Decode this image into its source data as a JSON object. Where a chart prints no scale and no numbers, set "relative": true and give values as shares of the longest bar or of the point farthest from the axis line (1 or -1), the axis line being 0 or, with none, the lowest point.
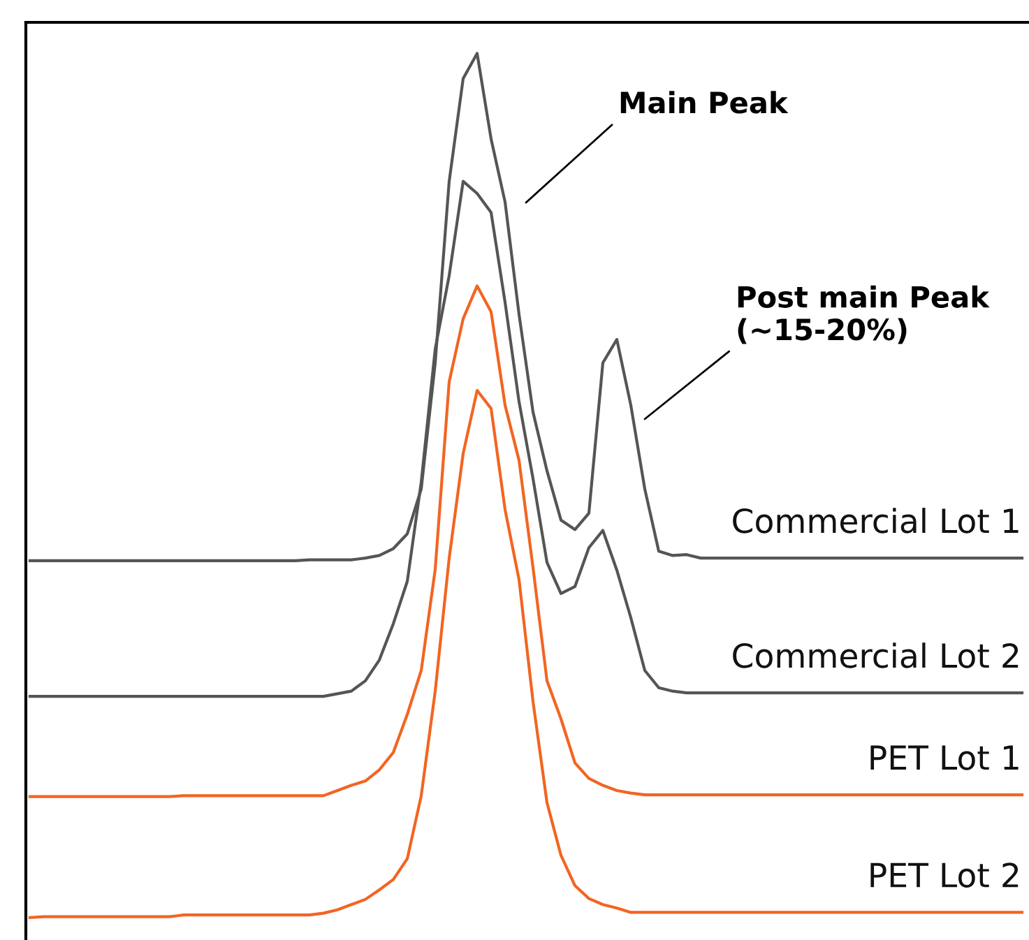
{
  "chart_data": {
    "type": "line",
    "relative": true,
    "legend": false,
    "grid": false,
    "marker": "none",
    "line_style": "solid",
    "categories": [
      null,
      null,
      null,
      null,
      null,
      null,
      null,
      null,
      null,
      null,
      null,
      null,
      null,
      null,
      null,
      null,
      null,
      null,
      null,
      null,
      null,
      null,
      null,
      null,
      null,
      null,
      null,
      null,
      null,
      null,
      null,
      null,
      null,
      null,
      null,
      null,
      null,
      null,
      null,
      null,
      null,
      null,
      null,
      null,
      null,
      null,
      null,
      null,
      null,
      null,
      null,
      null,
      null,
      null,
      null,
      null,
      null,
      null,
      null,
      null,
      null,
      null,
      null,
      null,
      null,
      null,
      null,
      null,
      null,
      null,
      null,
      null
    ],
    "series": [
      {
        "name": "Commercial Lot 1",
        "color": "#555555",
        "values": [
          0.413,
          0.413,
          0.413,
          0.413,
          0.413,
          0.413,
          0.413,
          0.413,
          0.413,
          0.413,
          0.413,
          0.413,
          0.413,
          0.413,
          0.413,
          0.413,
          0.413,
          0.413,
          0.413,
          0.413,
          0.414,
          0.414,
          0.414,
          0.414,
          0.416,
          0.419,
          0.427,
          0.444,
          0.496,
          0.642,
          0.852,
          0.971,
          1,
          0.901,
          0.828,
          0.698,
          0.585,
          0.517,
          0.46,
          0.449,
          0.468,
          0.642,
          0.669,
          0.593,
          0.496,
          0.424,
          0.419,
          0.42,
          0.416,
          0.416,
          0.416,
          0.416,
          0.416,
          0.416,
          0.416,
          0.416,
          0.416,
          0.416,
          0.416,
          0.416,
          0.416,
          0.416,
          0.416,
          0.416,
          0.416,
          0.416,
          0.416,
          0.416,
          0.416,
          0.416,
          0.416,
          0.416
        ]
      },
      {
        "name": "Commercial Lot 2",
        "color": "#555555",
        "values": [
          0.256,
          0.256,
          0.256,
          0.256,
          0.256,
          0.256,
          0.256,
          0.256,
          0.256,
          0.256,
          0.256,
          0.256,
          0.256,
          0.256,
          0.256,
          0.256,
          0.256,
          0.256,
          0.256,
          0.256,
          0.256,
          0.256,
          0.259,
          0.262,
          0.274,
          0.298,
          0.34,
          0.389,
          0.504,
          0.658,
          0.743,
          0.852,
          0.838,
          0.816,
          0.712,
          0.597,
          0.508,
          0.411,
          0.375,
          0.383,
          0.428,
          0.448,
          0.402,
          0.347,
          0.286,
          0.266,
          0.262,
          0.26,
          0.26,
          0.26,
          0.26,
          0.26,
          0.26,
          0.26,
          0.26,
          0.26,
          0.26,
          0.26,
          0.26,
          0.26,
          0.26,
          0.26,
          0.26,
          0.26,
          0.26,
          0.26,
          0.26,
          0.26,
          0.26,
          0.26,
          0.26,
          0.26
        ]
      },
      {
        "name": "PET Lot 1",
        "color": "#f26522",
        "values": [
          0.14,
          0.14,
          0.14,
          0.14,
          0.14,
          0.14,
          0.14,
          0.14,
          0.14,
          0.14,
          0.14,
          0.141,
          0.141,
          0.141,
          0.141,
          0.141,
          0.141,
          0.141,
          0.141,
          0.141,
          0.141,
          0.141,
          0.147,
          0.153,
          0.158,
          0.171,
          0.191,
          0.235,
          0.286,
          0.403,
          0.62,
          0.693,
          0.731,
          0.701,
          0.593,
          0.529,
          0.405,
          0.274,
          0.23,
          0.179,
          0.161,
          0.153,
          0.147,
          0.144,
          0.142,
          0.142,
          0.142,
          0.142,
          0.142,
          0.142,
          0.142,
          0.142,
          0.142,
          0.142,
          0.142,
          0.142,
          0.142,
          0.142,
          0.142,
          0.142,
          0.142,
          0.142,
          0.142,
          0.142,
          0.142,
          0.142,
          0.142,
          0.142,
          0.142,
          0.142,
          0.142,
          0.142
        ]
      },
      {
        "name": "PET Lot 2",
        "color": "#f26522",
        "values": [
          0,
          0.001,
          0.001,
          0.001,
          0.001,
          0.001,
          0.001,
          0.001,
          0.001,
          0.001,
          0.001,
          0.003,
          0.003,
          0.003,
          0.003,
          0.003,
          0.003,
          0.003,
          0.003,
          0.003,
          0.003,
          0.005,
          0.009,
          0.015,
          0.021,
          0.032,
          0.044,
          0.068,
          0.141,
          0.262,
          0.416,
          0.537,
          0.61,
          0.589,
          0.472,
          0.391,
          0.25,
          0.133,
          0.072,
          0.037,
          0.022,
          0.015,
          0.011,
          0.006,
          0.006,
          0.006,
          0.006,
          0.006,
          0.006,
          0.006,
          0.006,
          0.006,
          0.006,
          0.006,
          0.006,
          0.006,
          0.006,
          0.006,
          0.006,
          0.006,
          0.006,
          0.006,
          0.006,
          0.006,
          0.006,
          0.006,
          0.006,
          0.006,
          0.006,
          0.006,
          0.006,
          0.006
        ]
      }
    ],
    "annotations": [
      "Main Peak",
      "Post main Peak\n(~15-20%)"
    ]
  }
}
